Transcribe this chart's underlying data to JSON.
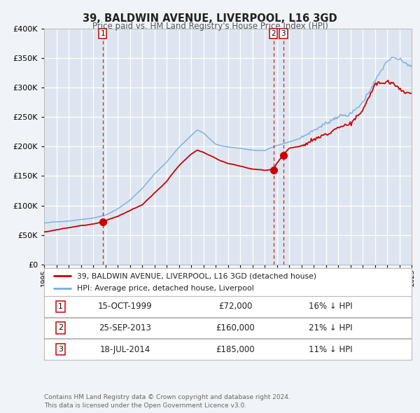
{
  "title": "39, BALDWIN AVENUE, LIVERPOOL, L16 3GD",
  "subtitle": "Price paid vs. HM Land Registry's House Price Index (HPI)",
  "bg_color": "#f0f4f8",
  "plot_bg_color": "#dde6f0",
  "grid_color": "#ffffff",
  "red_line_color": "#cc0000",
  "blue_line_color": "#7aaadd",
  "ylim": [
    0,
    400000
  ],
  "yticks": [
    0,
    50000,
    100000,
    150000,
    200000,
    250000,
    300000,
    350000,
    400000
  ],
  "sale_points": [
    {
      "year": 1999.79,
      "price": 72000,
      "label": "1"
    },
    {
      "year": 2013.73,
      "price": 160000,
      "label": "2"
    },
    {
      "year": 2014.54,
      "price": 185000,
      "label": "3"
    }
  ],
  "vline_years": [
    1999.79,
    2013.73,
    2014.54
  ],
  "legend_label_red": "39, BALDWIN AVENUE, LIVERPOOL, L16 3GD (detached house)",
  "legend_label_blue": "HPI: Average price, detached house, Liverpool",
  "table_rows": [
    {
      "num": "1",
      "date": "15-OCT-1999",
      "price": "£72,000",
      "hpi": "16% ↓ HPI"
    },
    {
      "num": "2",
      "date": "25-SEP-2013",
      "price": "£160,000",
      "hpi": "21% ↓ HPI"
    },
    {
      "num": "3",
      "date": "18-JUL-2014",
      "price": "£185,000",
      "hpi": "11% ↓ HPI"
    }
  ],
  "footnote": "Contains HM Land Registry data © Crown copyright and database right 2024.\nThis data is licensed under the Open Government Licence v3.0.",
  "xmin": 1995,
  "xmax": 2025
}
